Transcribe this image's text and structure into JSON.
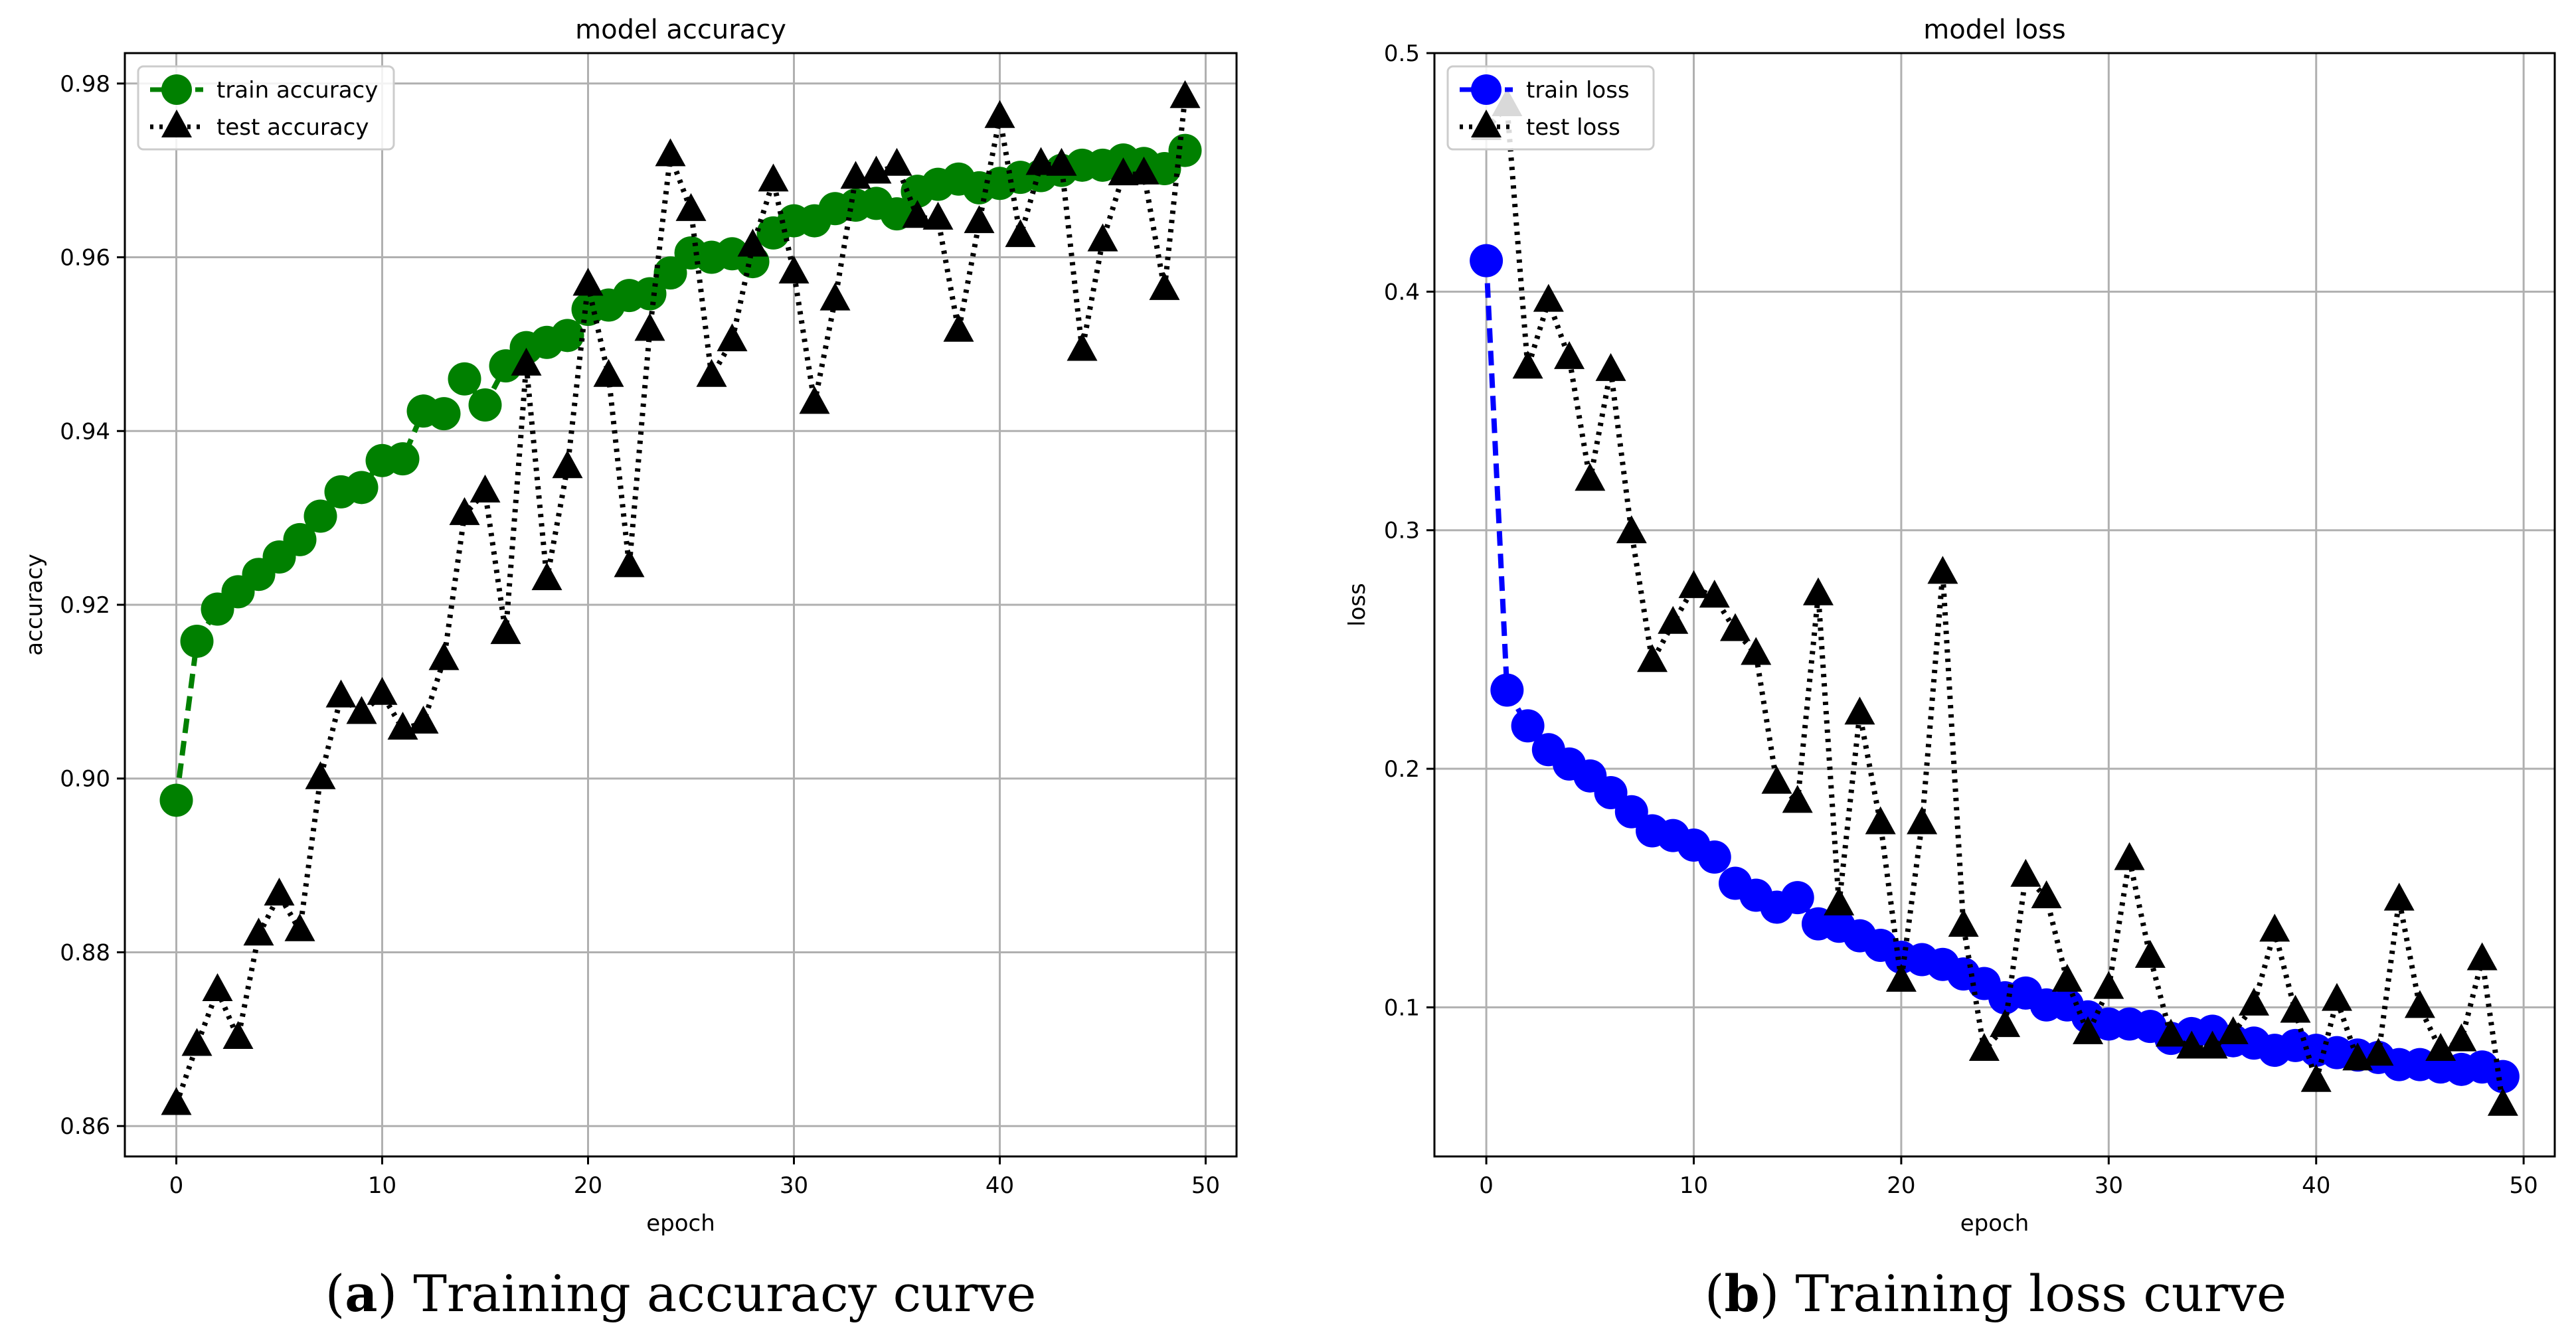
{
  "chart_data": [
    {
      "type": "line",
      "title": "model accuracy",
      "xlabel": "epoch",
      "ylabel": "accuracy",
      "xlim": [
        -2.5,
        51.5
      ],
      "ylim": [
        0.8565,
        0.9835
      ],
      "xticks": [
        0,
        10,
        20,
        30,
        40,
        50
      ],
      "xtick_labels": [
        "0",
        "10",
        "20",
        "30",
        "40",
        "50"
      ],
      "yticks": [
        0.86,
        0.88,
        0.9,
        0.92,
        0.94,
        0.96,
        0.98
      ],
      "ytick_labels": [
        "0.86",
        "0.88",
        "0.90",
        "0.92",
        "0.94",
        "0.96",
        "0.98"
      ],
      "grid": true,
      "legend_position": "top-left",
      "caption_prefix": "(",
      "caption_letter": "a",
      "caption_text": ") Training accuracy curve",
      "x": [
        0,
        1,
        2,
        3,
        4,
        5,
        6,
        7,
        8,
        9,
        10,
        11,
        12,
        13,
        14,
        15,
        16,
        17,
        18,
        19,
        20,
        21,
        22,
        23,
        24,
        25,
        26,
        27,
        28,
        29,
        30,
        31,
        32,
        33,
        34,
        35,
        36,
        37,
        38,
        39,
        40,
        41,
        42,
        43,
        44,
        45,
        46,
        47,
        48,
        49
      ],
      "series": [
        {
          "name": "train accuracy",
          "color": "#008000",
          "marker": "circle",
          "linestyle": "dashed",
          "values": [
            0.8975,
            0.9158,
            0.9195,
            0.9215,
            0.9235,
            0.9255,
            0.9275,
            0.9302,
            0.933,
            0.9335,
            0.9366,
            0.9368,
            0.9423,
            0.942,
            0.946,
            0.943,
            0.9475,
            0.9496,
            0.9502,
            0.951,
            0.954,
            0.9545,
            0.9556,
            0.9558,
            0.9582,
            0.9605,
            0.96,
            0.9604,
            0.9595,
            0.9628,
            0.9642,
            0.9642,
            0.9656,
            0.966,
            0.9662,
            0.965,
            0.9676,
            0.9684,
            0.969,
            0.968,
            0.9685,
            0.9692,
            0.9694,
            0.97,
            0.9706,
            0.9706,
            0.9712,
            0.9708,
            0.9702,
            0.9723
          ]
        },
        {
          "name": "test accuracy",
          "color": "#000000",
          "marker": "triangle",
          "linestyle": "dotted",
          "values": [
            0.8625,
            0.8693,
            0.8756,
            0.8701,
            0.882,
            0.8866,
            0.8825,
            0.9,
            0.9094,
            0.9075,
            0.9097,
            0.9057,
            0.9064,
            0.9137,
            0.9304,
            0.933,
            0.9167,
            0.9476,
            0.9229,
            0.9358,
            0.9568,
            0.9463,
            0.9244,
            0.9516,
            0.9717,
            0.9654,
            0.9463,
            0.9504,
            0.9613,
            0.9688,
            0.9582,
            0.9432,
            0.9551,
            0.9691,
            0.9697,
            0.9706,
            0.9646,
            0.9644,
            0.9515,
            0.964,
            0.9761,
            0.9624,
            0.9707,
            0.9706,
            0.9493,
            0.9619,
            0.9695,
            0.9696,
            0.9563,
            0.9784
          ]
        }
      ]
    },
    {
      "type": "line",
      "title": "model loss",
      "xlabel": "epoch",
      "ylabel": "loss",
      "xlim": [
        -2.5,
        51.5
      ],
      "ylim": [
        0.0375,
        0.5
      ],
      "xticks": [
        0,
        10,
        20,
        30,
        40,
        50
      ],
      "xtick_labels": [
        "0",
        "10",
        "20",
        "30",
        "40",
        "50"
      ],
      "yticks": [
        0.1,
        0.2,
        0.3,
        0.4,
        0.5
      ],
      "ytick_labels": [
        "0.1",
        "0.2",
        "0.3",
        "0.4",
        "0.5"
      ],
      "grid": true,
      "legend_position": "top-left",
      "caption_prefix": "(",
      "caption_letter": "b",
      "caption_text": ") Training loss curve",
      "x": [
        0,
        1,
        2,
        3,
        4,
        5,
        6,
        7,
        8,
        9,
        10,
        11,
        12,
        13,
        14,
        15,
        16,
        17,
        18,
        19,
        20,
        21,
        22,
        23,
        24,
        25,
        26,
        27,
        28,
        29,
        30,
        31,
        32,
        33,
        34,
        35,
        36,
        37,
        38,
        39,
        40,
        41,
        42,
        43,
        44,
        45,
        46,
        47,
        48,
        49
      ],
      "series": [
        {
          "name": "train loss",
          "color": "#0000ff",
          "marker": "circle",
          "linestyle": "dashed",
          "values": [
            0.413,
            0.233,
            0.218,
            0.208,
            0.202,
            0.197,
            0.19,
            0.182,
            0.174,
            0.172,
            0.168,
            0.163,
            0.152,
            0.147,
            0.142,
            0.146,
            0.135,
            0.134,
            0.13,
            0.126,
            0.121,
            0.12,
            0.118,
            0.114,
            0.11,
            0.104,
            0.106,
            0.101,
            0.101,
            0.096,
            0.093,
            0.093,
            0.092,
            0.087,
            0.089,
            0.09,
            0.086,
            0.085,
            0.082,
            0.084,
            0.082,
            0.081,
            0.08,
            0.079,
            0.076,
            0.076,
            0.075,
            0.074,
            0.075,
            0.071
          ]
        },
        {
          "name": "test loss",
          "color": "#000000",
          "marker": "triangle",
          "linestyle": "dotted",
          "values": [
            0.468,
            0.478,
            0.368,
            0.396,
            0.372,
            0.321,
            0.367,
            0.299,
            0.245,
            0.261,
            0.276,
            0.272,
            0.258,
            0.248,
            0.194,
            0.186,
            0.273,
            0.143,
            0.223,
            0.177,
            0.111,
            0.177,
            0.282,
            0.134,
            0.082,
            0.092,
            0.155,
            0.146,
            0.111,
            0.089,
            0.108,
            0.162,
            0.121,
            0.088,
            0.083,
            0.083,
            0.089,
            0.101,
            0.132,
            0.098,
            0.069,
            0.103,
            0.078,
            0.08,
            0.145,
            0.1,
            0.082,
            0.086,
            0.12,
            0.059
          ]
        }
      ]
    }
  ]
}
